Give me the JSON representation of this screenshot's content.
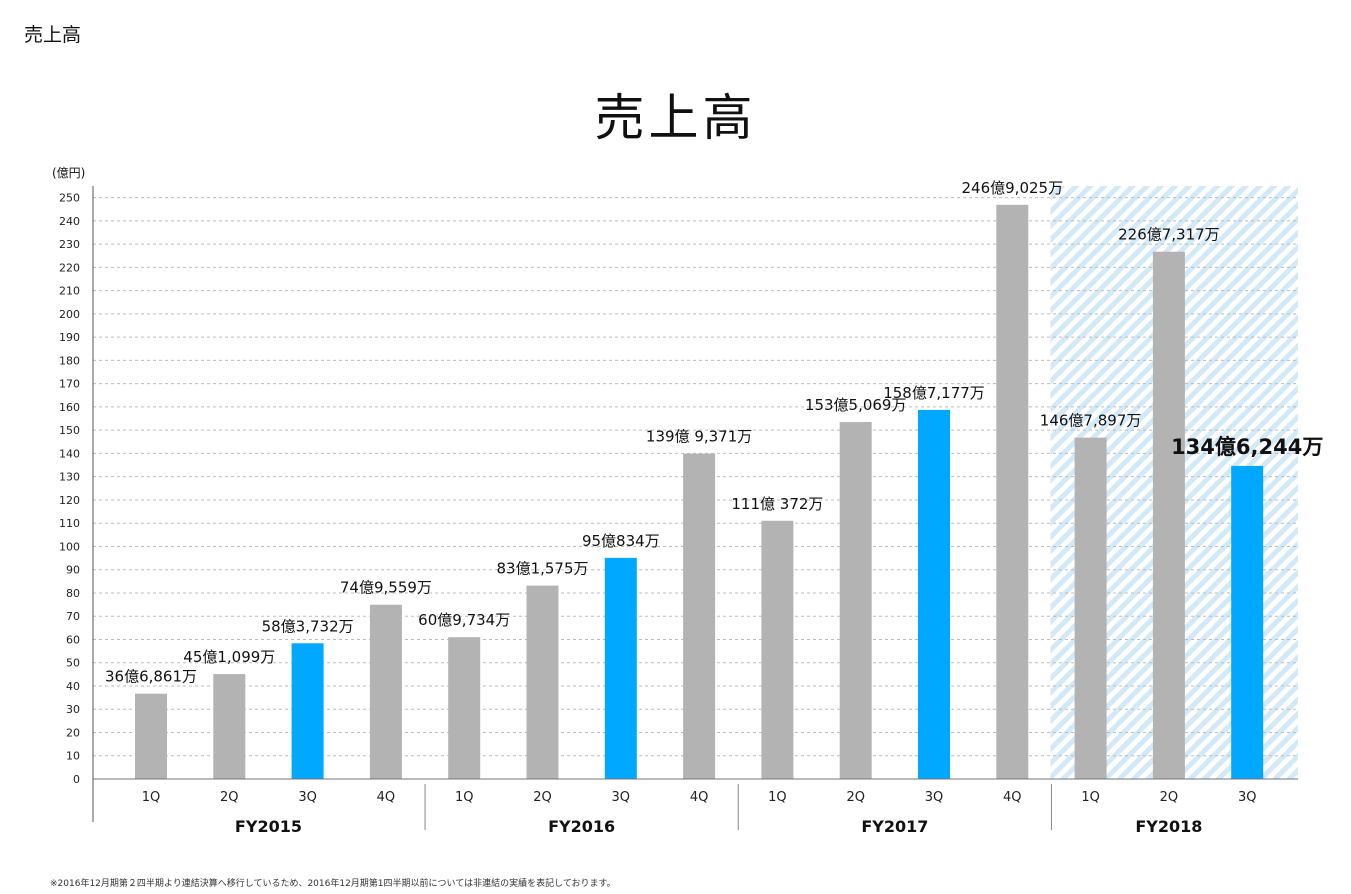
{
  "page": {
    "corner_title": "売上高",
    "title": "売上高",
    "unit_label": "(億円)",
    "footnote": "※2016年12月期第２四半期より連結決算へ移行しているため、2016年12月期第1四半期以前については非連結の実績を表記しております。"
  },
  "colors": {
    "bar_default": "#b3b3b3",
    "bar_highlight": "#00a8ff",
    "hatch": "#d3e9f7",
    "grid": "#bdbdbd"
  },
  "chart_data": {
    "type": "bar",
    "ylim": [
      0,
      255
    ],
    "yticks": [
      0,
      10,
      20,
      30,
      40,
      50,
      60,
      70,
      80,
      90,
      100,
      110,
      120,
      130,
      140,
      150,
      160,
      170,
      180,
      190,
      200,
      210,
      220,
      230,
      240,
      250
    ],
    "grid": true,
    "groups": [
      {
        "label": "FY2015",
        "bars": [
          {
            "q": "1Q",
            "value": 36.6861,
            "label": "36億6,861万",
            "highlight": false
          },
          {
            "q": "2Q",
            "value": 45.1099,
            "label": "45億1,099万",
            "highlight": false
          },
          {
            "q": "3Q",
            "value": 58.3732,
            "label": "58億3,732万",
            "highlight": true
          },
          {
            "q": "4Q",
            "value": 74.9559,
            "label": "74億9,559万",
            "highlight": false
          }
        ]
      },
      {
        "label": "FY2016",
        "bars": [
          {
            "q": "1Q",
            "value": 60.9734,
            "label": "60億9,734万",
            "highlight": false
          },
          {
            "q": "2Q",
            "value": 83.1575,
            "label": "83億1,575万",
            "highlight": false
          },
          {
            "q": "3Q",
            "value": 95.0834,
            "label": "95億834万",
            "highlight": true
          },
          {
            "q": "4Q",
            "value": 139.9371,
            "label": "139億 9,371万",
            "highlight": false
          }
        ]
      },
      {
        "label": "FY2017",
        "bars": [
          {
            "q": "1Q",
            "value": 111.0372,
            "label": "111億 372万",
            "highlight": false
          },
          {
            "q": "2Q",
            "value": 153.5069,
            "label": "153億5,069万",
            "highlight": false
          },
          {
            "q": "3Q",
            "value": 158.7177,
            "label": "158億7,177万",
            "highlight": true
          },
          {
            "q": "4Q",
            "value": 246.9025,
            "label": "246億9,025万",
            "highlight": false
          }
        ]
      },
      {
        "label": "FY2018",
        "hatched": true,
        "bars": [
          {
            "q": "1Q",
            "value": 146.7897,
            "label": "146億7,897万",
            "highlight": false
          },
          {
            "q": "2Q",
            "value": 226.7317,
            "label": "226億7,317万",
            "highlight": false
          },
          {
            "q": "3Q",
            "value": 134.6244,
            "label": "134億6,244万",
            "highlight": true,
            "emphasis": true
          }
        ]
      }
    ]
  }
}
